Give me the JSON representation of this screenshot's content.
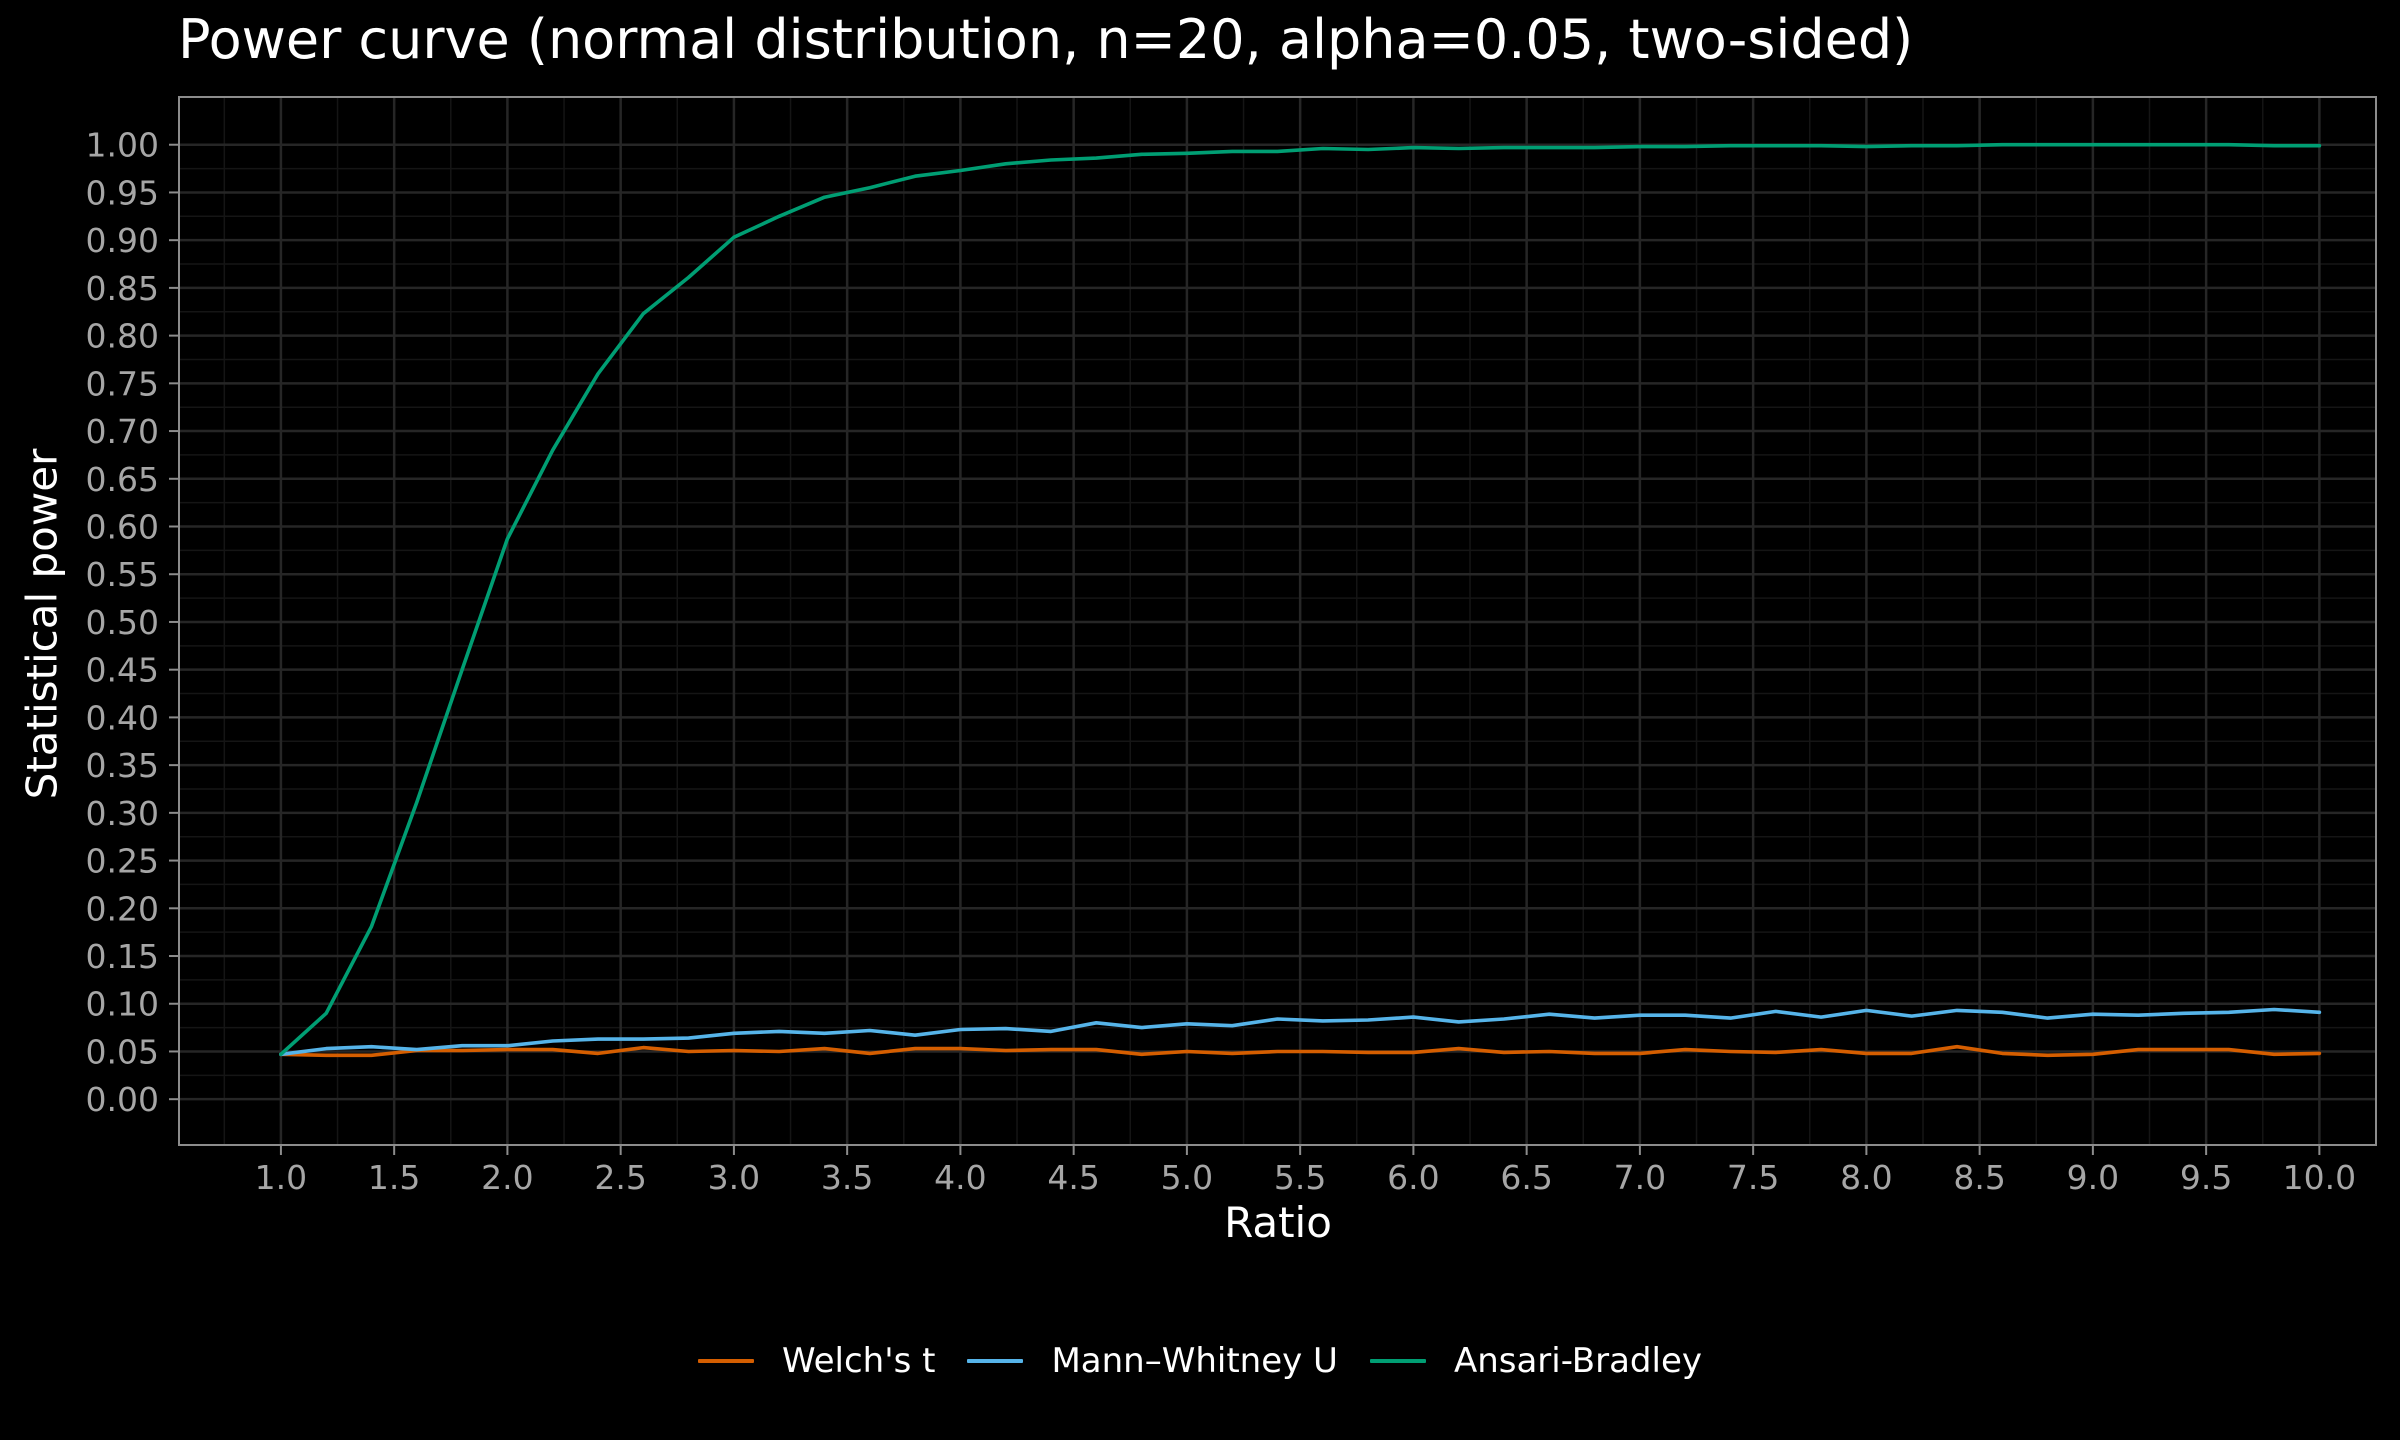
{
  "chart_data": {
    "type": "line",
    "title": "Power curve (normal distribution, n=20, alpha=0.05, two-sided)",
    "xlabel": "Ratio",
    "ylabel": "Statistical power",
    "xlim": [
      0.55,
      10.25
    ],
    "ylim": [
      -0.048,
      1.05
    ],
    "xticks": [
      1.0,
      1.5,
      2.0,
      2.5,
      3.0,
      3.5,
      4.0,
      4.5,
      5.0,
      5.5,
      6.0,
      6.5,
      7.0,
      7.5,
      8.0,
      8.5,
      9.0,
      9.5,
      10.0
    ],
    "yticks": [
      0.0,
      0.05,
      0.1,
      0.15,
      0.2,
      0.25,
      0.3,
      0.35,
      0.4,
      0.45,
      0.5,
      0.55,
      0.6,
      0.65,
      0.7,
      0.75,
      0.8,
      0.85,
      0.9,
      0.95,
      1.0
    ],
    "grid": true,
    "legend_position": "bottom",
    "background": "#000000",
    "x": [
      1.0,
      1.2,
      1.4,
      1.6,
      1.8,
      2.0,
      2.2,
      2.4,
      2.6,
      2.8,
      3.0,
      3.2,
      3.4,
      3.6,
      3.8,
      4.0,
      4.2,
      4.4,
      4.6,
      4.8,
      5.0,
      5.2,
      5.4,
      5.6,
      5.8,
      6.0,
      6.2,
      6.4,
      6.6,
      6.8,
      7.0,
      7.2,
      7.4,
      7.6,
      7.8,
      8.0,
      8.2,
      8.4,
      8.6,
      8.8,
      9.0,
      9.2,
      9.4,
      9.6,
      9.8,
      10.0
    ],
    "series": [
      {
        "name": "Welch's t",
        "color": "#d55e00",
        "values": [
          0.047,
          0.046,
          0.046,
          0.051,
          0.051,
          0.052,
          0.052,
          0.048,
          0.054,
          0.05,
          0.051,
          0.05,
          0.053,
          0.048,
          0.053,
          0.053,
          0.051,
          0.052,
          0.052,
          0.047,
          0.05,
          0.048,
          0.05,
          0.05,
          0.049,
          0.049,
          0.053,
          0.049,
          0.05,
          0.048,
          0.048,
          0.052,
          0.05,
          0.049,
          0.052,
          0.048,
          0.048,
          0.055,
          0.048,
          0.046,
          0.047,
          0.052,
          0.052,
          0.052,
          0.047,
          0.048
        ]
      },
      {
        "name": "Mann–Whitney U",
        "color": "#56b4e9",
        "values": [
          0.047,
          0.053,
          0.055,
          0.052,
          0.056,
          0.056,
          0.061,
          0.063,
          0.063,
          0.064,
          0.069,
          0.071,
          0.069,
          0.072,
          0.067,
          0.073,
          0.074,
          0.071,
          0.08,
          0.075,
          0.079,
          0.077,
          0.084,
          0.082,
          0.083,
          0.086,
          0.081,
          0.084,
          0.089,
          0.085,
          0.088,
          0.088,
          0.085,
          0.092,
          0.086,
          0.093,
          0.087,
          0.093,
          0.091,
          0.085,
          0.089,
          0.088,
          0.09,
          0.091,
          0.094,
          0.091
        ]
      },
      {
        "name": "Ansari-Bradley",
        "color": "#009e73",
        "values": [
          0.047,
          0.09,
          0.181,
          0.311,
          0.45,
          0.587,
          0.68,
          0.76,
          0.823,
          0.861,
          0.903,
          0.925,
          0.945,
          0.955,
          0.967,
          0.973,
          0.98,
          0.984,
          0.986,
          0.99,
          0.991,
          0.993,
          0.993,
          0.996,
          0.995,
          0.997,
          0.996,
          0.997,
          0.997,
          0.997,
          0.998,
          0.998,
          0.999,
          0.999,
          0.999,
          0.998,
          0.999,
          0.999,
          1.0,
          1.0,
          1.0,
          1.0,
          1.0,
          1.0,
          0.999,
          0.999
        ]
      }
    ]
  }
}
